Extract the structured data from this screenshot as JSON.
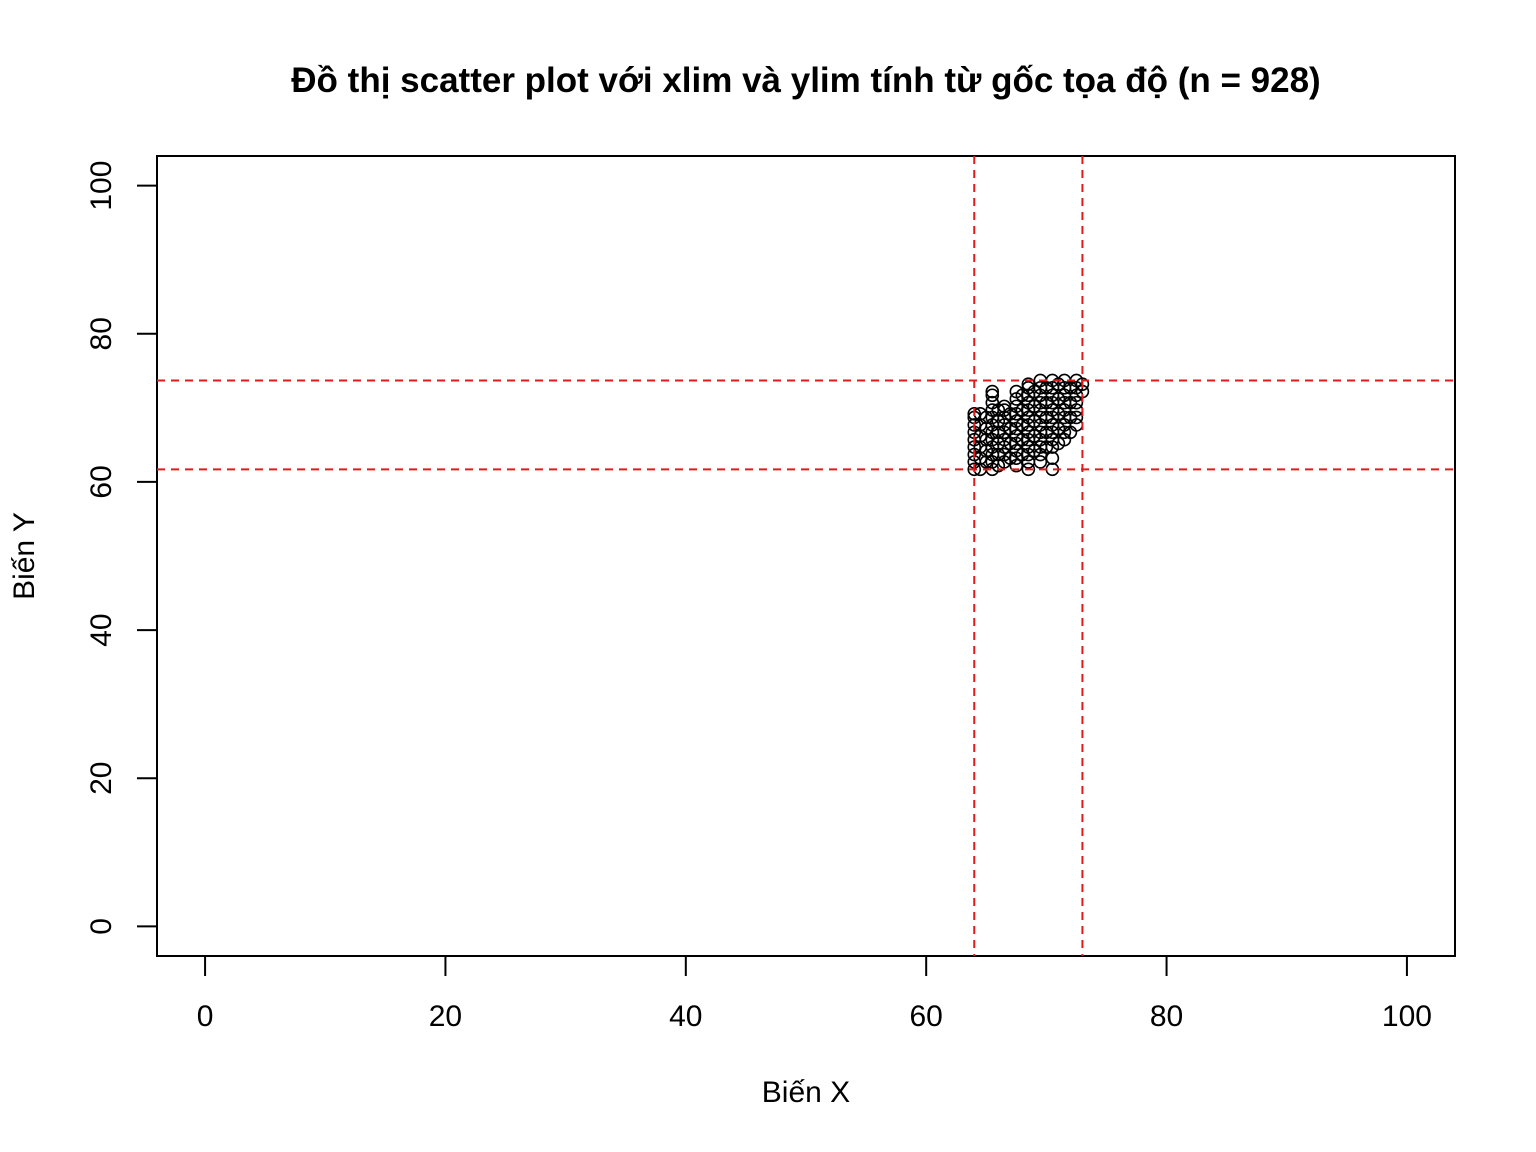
{
  "chart_data": {
    "type": "scatter",
    "title": "Đồ thị scatter plot với xlim và ylim tính từ gốc tọa độ (n = 928)",
    "xlabel": "Biến X",
    "ylabel": "Biến Y",
    "xlim": [
      -4,
      104
    ],
    "ylim": [
      -4,
      104
    ],
    "x_ticks": [
      0,
      20,
      40,
      60,
      80,
      100
    ],
    "y_ticks": [
      0,
      20,
      40,
      60,
      80,
      100
    ],
    "grid": false,
    "legend": "none",
    "point_color": "#000000",
    "reference_line_color": "#e31a1c",
    "reference_lines": {
      "vertical": [
        64.0,
        73.0
      ],
      "horizontal": [
        61.7,
        73.7
      ]
    },
    "points": [
      [
        64.0,
        61.7
      ],
      [
        64.0,
        62.7
      ],
      [
        64.0,
        63.7
      ],
      [
        64.0,
        64.7
      ],
      [
        64.0,
        65.7
      ],
      [
        64.0,
        66.7
      ],
      [
        64.0,
        67.7
      ],
      [
        64.0,
        68.7
      ],
      [
        64.0,
        69.2
      ],
      [
        64.5,
        61.7
      ],
      [
        64.5,
        63.2
      ],
      [
        64.5,
        64.7
      ],
      [
        64.5,
        66.2
      ],
      [
        64.5,
        67.7
      ],
      [
        64.5,
        69.2
      ],
      [
        65.0,
        62.7
      ],
      [
        65.0,
        64.2
      ],
      [
        65.0,
        65.7
      ],
      [
        65.0,
        67.2
      ],
      [
        65.0,
        68.7
      ],
      [
        65.5,
        61.7
      ],
      [
        65.5,
        62.7
      ],
      [
        65.5,
        63.7
      ],
      [
        65.5,
        64.7
      ],
      [
        65.5,
        65.7
      ],
      [
        65.5,
        66.7
      ],
      [
        65.5,
        67.7
      ],
      [
        65.5,
        68.7
      ],
      [
        65.5,
        69.7
      ],
      [
        65.5,
        70.7
      ],
      [
        65.5,
        71.7
      ],
      [
        65.5,
        72.2
      ],
      [
        66.0,
        62.2
      ],
      [
        66.0,
        63.7
      ],
      [
        66.0,
        65.2
      ],
      [
        66.0,
        66.7
      ],
      [
        66.0,
        68.2
      ],
      [
        66.0,
        69.7
      ],
      [
        66.5,
        62.7
      ],
      [
        66.5,
        63.7
      ],
      [
        66.5,
        64.7
      ],
      [
        66.5,
        65.7
      ],
      [
        66.5,
        66.7
      ],
      [
        66.5,
        67.7
      ],
      [
        66.5,
        68.7
      ],
      [
        66.5,
        69.7
      ],
      [
        66.5,
        70.2
      ],
      [
        67.0,
        63.2
      ],
      [
        67.0,
        65.2
      ],
      [
        67.0,
        67.2
      ],
      [
        67.0,
        69.2
      ],
      [
        67.5,
        62.2
      ],
      [
        67.5,
        63.2
      ],
      [
        67.5,
        64.2
      ],
      [
        67.5,
        65.2
      ],
      [
        67.5,
        66.2
      ],
      [
        67.5,
        67.2
      ],
      [
        67.5,
        68.2
      ],
      [
        67.5,
        69.2
      ],
      [
        67.5,
        70.2
      ],
      [
        67.5,
        71.2
      ],
      [
        67.5,
        72.2
      ],
      [
        68.0,
        63.7
      ],
      [
        68.0,
        65.7
      ],
      [
        68.0,
        67.7
      ],
      [
        68.0,
        69.7
      ],
      [
        68.0,
        71.7
      ],
      [
        68.5,
        61.7
      ],
      [
        68.5,
        62.7
      ],
      [
        68.5,
        63.7
      ],
      [
        68.5,
        64.7
      ],
      [
        68.5,
        65.7
      ],
      [
        68.5,
        66.7
      ],
      [
        68.5,
        67.7
      ],
      [
        68.5,
        68.7
      ],
      [
        68.5,
        69.7
      ],
      [
        68.5,
        70.7
      ],
      [
        68.5,
        71.7
      ],
      [
        68.5,
        72.7
      ],
      [
        68.5,
        73.2
      ],
      [
        69.0,
        64.2
      ],
      [
        69.0,
        66.2
      ],
      [
        69.0,
        68.2
      ],
      [
        69.0,
        70.2
      ],
      [
        69.0,
        72.2
      ],
      [
        69.5,
        62.7
      ],
      [
        69.5,
        63.7
      ],
      [
        69.5,
        64.7
      ],
      [
        69.5,
        65.7
      ],
      [
        69.5,
        66.7
      ],
      [
        69.5,
        67.7
      ],
      [
        69.5,
        68.7
      ],
      [
        69.5,
        69.7
      ],
      [
        69.5,
        70.7
      ],
      [
        69.5,
        71.7
      ],
      [
        69.5,
        72.7
      ],
      [
        69.5,
        73.7
      ],
      [
        70.0,
        64.7
      ],
      [
        70.0,
        66.7
      ],
      [
        70.0,
        68.7
      ],
      [
        70.0,
        70.7
      ],
      [
        70.0,
        72.7
      ],
      [
        70.5,
        61.7
      ],
      [
        70.5,
        63.2
      ],
      [
        70.5,
        64.7
      ],
      [
        70.5,
        65.7
      ],
      [
        70.5,
        66.7
      ],
      [
        70.5,
        67.7
      ],
      [
        70.5,
        68.7
      ],
      [
        70.5,
        69.7
      ],
      [
        70.5,
        70.7
      ],
      [
        70.5,
        71.7
      ],
      [
        70.5,
        72.7
      ],
      [
        70.5,
        73.7
      ],
      [
        71.0,
        65.2
      ],
      [
        71.0,
        67.2
      ],
      [
        71.0,
        69.2
      ],
      [
        71.0,
        71.2
      ],
      [
        71.0,
        73.2
      ],
      [
        71.5,
        65.7
      ],
      [
        71.5,
        66.7
      ],
      [
        71.5,
        67.7
      ],
      [
        71.5,
        68.7
      ],
      [
        71.5,
        69.7
      ],
      [
        71.5,
        70.7
      ],
      [
        71.5,
        71.7
      ],
      [
        71.5,
        72.7
      ],
      [
        71.5,
        73.7
      ],
      [
        72.0,
        66.7
      ],
      [
        72.0,
        68.7
      ],
      [
        72.0,
        70.7
      ],
      [
        72.0,
        72.7
      ],
      [
        72.5,
        67.7
      ],
      [
        72.5,
        68.7
      ],
      [
        72.5,
        69.7
      ],
      [
        72.5,
        70.7
      ],
      [
        72.5,
        71.7
      ],
      [
        72.5,
        72.7
      ],
      [
        72.5,
        73.7
      ],
      [
        73.0,
        72.2
      ],
      [
        73.0,
        73.2
      ]
    ]
  }
}
